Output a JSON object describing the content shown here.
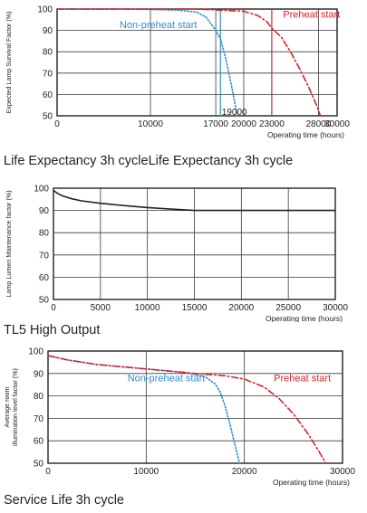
{
  "chart_data": [
    {
      "type": "line",
      "caption": "Life Expectancy 3h cycleLife Expectancy 3h cycle",
      "xlabel": "Operating time (hours)",
      "ylabel": "Expected Lamp Survival Factor (%)",
      "xlim": [
        0,
        30000
      ],
      "ylim": [
        50,
        100
      ],
      "xticks": [
        0,
        10000,
        17000,
        20000,
        23000,
        28000,
        30000
      ],
      "xtick_labels": [
        "0",
        "10000",
        "17000",
        "20000",
        "23000",
        "28000",
        "30000"
      ],
      "yticks": [
        50,
        60,
        70,
        80,
        90,
        100
      ],
      "ytick_labels": [
        "50",
        "60",
        "70",
        "80",
        "90",
        "100"
      ],
      "grid": true,
      "series": [
        {
          "name": "Non-preheat start",
          "color": "#2a8fd0",
          "style": "dotted",
          "x": [
            0,
            8000,
            13000,
            15000,
            16000,
            17000,
            17500,
            18000,
            18500,
            19000,
            19300
          ],
          "y": [
            100,
            100,
            99.5,
            98.5,
            96,
            90,
            86,
            78,
            68,
            57,
            50
          ]
        },
        {
          "name": "Preheat start",
          "color": "#e0202a",
          "style": "dashdot",
          "x": [
            0,
            15000,
            20000,
            21500,
            22500,
            23000,
            24000,
            25000,
            26000,
            27000,
            27800,
            28200
          ],
          "y": [
            100,
            100,
            99,
            97,
            94,
            91,
            87,
            80,
            72,
            63,
            55,
            50
          ]
        }
      ],
      "vlines": [
        {
          "x": 17500,
          "color": "#2a8fd0"
        },
        {
          "x": 23000,
          "color": "#e0202a"
        }
      ],
      "annotations": [
        {
          "text": "19000",
          "x": 19000,
          "y": 50
        }
      ]
    },
    {
      "type": "line",
      "caption": "TL5 High Output",
      "xlabel": "Operating time (hours)",
      "ylabel": "Lamp Lumen Maintenance factor (%)",
      "xlim": [
        0,
        30000
      ],
      "ylim": [
        50,
        100
      ],
      "xticks": [
        0,
        5000,
        10000,
        15000,
        20000,
        25000,
        30000
      ],
      "xtick_labels": [
        "0",
        "5000",
        "10000",
        "15000",
        "20000",
        "25000",
        "30000"
      ],
      "yticks": [
        50,
        60,
        70,
        80,
        90,
        100
      ],
      "ytick_labels": [
        "50",
        "60",
        "70",
        "80",
        "90",
        "100"
      ],
      "grid": true,
      "series": [
        {
          "name": "",
          "color": "#222222",
          "style": "solid",
          "x": [
            0,
            500,
            1000,
            2000,
            3000,
            5000,
            7500,
            10000,
            12500,
            15000,
            20000,
            25000,
            30000
          ],
          "y": [
            99,
            97.5,
            96.5,
            95.2,
            94.3,
            93.2,
            92.2,
            91.3,
            90.6,
            90,
            90,
            90,
            90
          ]
        }
      ]
    },
    {
      "type": "line",
      "caption": "Service Life 3h cycle",
      "xlabel": "Operating time (hours)",
      "ylabel": "Average room illumination level factor (%)",
      "xlim": [
        0,
        30000
      ],
      "ylim": [
        50,
        100
      ],
      "xticks": [
        0,
        10000,
        20000,
        30000
      ],
      "xtick_labels": [
        "0",
        "10000",
        "20000",
        "30000"
      ],
      "yticks": [
        50,
        60,
        70,
        80,
        90,
        100
      ],
      "ytick_labels": [
        "50",
        "60",
        "70",
        "80",
        "90",
        "100"
      ],
      "grid": true,
      "series": [
        {
          "name": "Non-preheat start",
          "color": "#2a8fd0",
          "style": "dotted",
          "x": [
            0,
            2000,
            5000,
            10000,
            14000,
            16000,
            17000,
            17500,
            18000,
            18500,
            19000,
            19500
          ],
          "y": [
            98,
            96,
            94,
            92,
            90.5,
            88.5,
            85.5,
            82,
            76,
            68,
            59,
            50
          ]
        },
        {
          "name": "Preheat start",
          "color": "#e0202a",
          "style": "dashdot",
          "x": [
            0,
            2000,
            5000,
            10000,
            15000,
            18000,
            20000,
            22000,
            23500,
            25000,
            26500,
            27500,
            28300
          ],
          "y": [
            98,
            96,
            94,
            92,
            90,
            89,
            87.5,
            84,
            79,
            72,
            63,
            56,
            50
          ]
        }
      ]
    }
  ]
}
